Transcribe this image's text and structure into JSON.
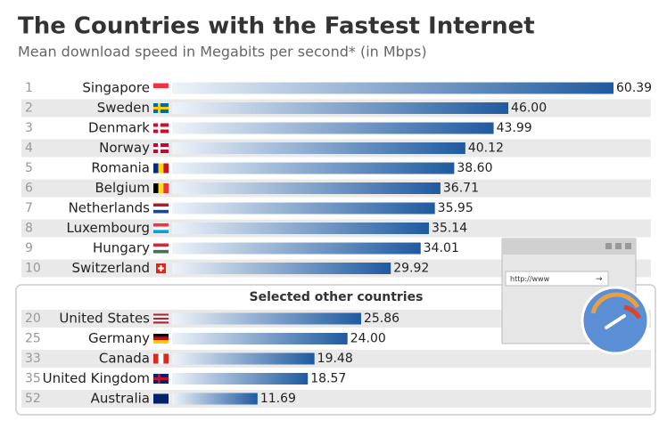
{
  "chart_data": [
    {
      "type": "bar",
      "title": "The Countries with the Fastest Internet",
      "subtitle": "Mean download speed in Megabits per second* (in Mbps)",
      "color": "#1f5aa0",
      "ranks": [
        1,
        2,
        3,
        4,
        5,
        6,
        7,
        8,
        9,
        10
      ],
      "categories": [
        "Singapore",
        "Sweden",
        "Denmark",
        "Norway",
        "Romania",
        "Belgium",
        "Netherlands",
        "Luxembourg",
        "Hungary",
        "Switzerland"
      ],
      "values": [
        60.39,
        46.0,
        43.99,
        40.12,
        38.6,
        36.71,
        35.95,
        35.14,
        34.01,
        29.92
      ],
      "value_labels": [
        "60.39",
        "46.00",
        "43.99",
        "40.12",
        "38.60",
        "36.71",
        "35.95",
        "35.14",
        "34.01",
        "29.92"
      ]
    },
    {
      "type": "bar",
      "title": "Selected other countries",
      "color": "#1f5aa0",
      "ranks": [
        20,
        25,
        33,
        35,
        52
      ],
      "categories": [
        "United States",
        "Germany",
        "Canada",
        "United Kingdom",
        "Australia"
      ],
      "values": [
        25.86,
        24.0,
        19.48,
        18.57,
        11.69
      ],
      "value_labels": [
        "25.86",
        "24.00",
        "19.48",
        "18.57",
        "11.69"
      ]
    }
  ],
  "illustration": {
    "url": "http://www"
  }
}
